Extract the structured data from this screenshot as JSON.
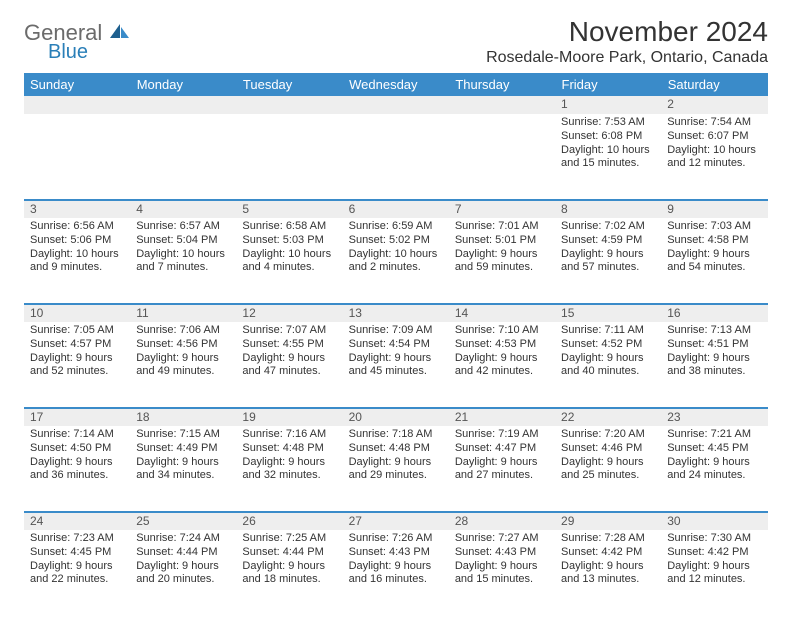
{
  "logo": {
    "line1": "General",
    "line2": "Blue"
  },
  "title": "November 2024",
  "location": "Rosedale-Moore Park, Ontario, Canada",
  "colors": {
    "header_bg": "#3a8bc9",
    "header_text": "#ffffff",
    "daynum_bg": "#eeeeee",
    "separator": "#3a8bc9",
    "body_text": "#333333",
    "logo_gray": "#6b6b6b",
    "logo_blue": "#2a7fb8"
  },
  "day_headers": [
    "Sunday",
    "Monday",
    "Tuesday",
    "Wednesday",
    "Thursday",
    "Friday",
    "Saturday"
  ],
  "weeks": [
    [
      {
        "n": "",
        "t": ""
      },
      {
        "n": "",
        "t": ""
      },
      {
        "n": "",
        "t": ""
      },
      {
        "n": "",
        "t": ""
      },
      {
        "n": "",
        "t": ""
      },
      {
        "n": "1",
        "t": "Sunrise: 7:53 AM\nSunset: 6:08 PM\nDaylight: 10 hours and 15 minutes."
      },
      {
        "n": "2",
        "t": "Sunrise: 7:54 AM\nSunset: 6:07 PM\nDaylight: 10 hours and 12 minutes."
      }
    ],
    [
      {
        "n": "3",
        "t": "Sunrise: 6:56 AM\nSunset: 5:06 PM\nDaylight: 10 hours and 9 minutes."
      },
      {
        "n": "4",
        "t": "Sunrise: 6:57 AM\nSunset: 5:04 PM\nDaylight: 10 hours and 7 minutes."
      },
      {
        "n": "5",
        "t": "Sunrise: 6:58 AM\nSunset: 5:03 PM\nDaylight: 10 hours and 4 minutes."
      },
      {
        "n": "6",
        "t": "Sunrise: 6:59 AM\nSunset: 5:02 PM\nDaylight: 10 hours and 2 minutes."
      },
      {
        "n": "7",
        "t": "Sunrise: 7:01 AM\nSunset: 5:01 PM\nDaylight: 9 hours and 59 minutes."
      },
      {
        "n": "8",
        "t": "Sunrise: 7:02 AM\nSunset: 4:59 PM\nDaylight: 9 hours and 57 minutes."
      },
      {
        "n": "9",
        "t": "Sunrise: 7:03 AM\nSunset: 4:58 PM\nDaylight: 9 hours and 54 minutes."
      }
    ],
    [
      {
        "n": "10",
        "t": "Sunrise: 7:05 AM\nSunset: 4:57 PM\nDaylight: 9 hours and 52 minutes."
      },
      {
        "n": "11",
        "t": "Sunrise: 7:06 AM\nSunset: 4:56 PM\nDaylight: 9 hours and 49 minutes."
      },
      {
        "n": "12",
        "t": "Sunrise: 7:07 AM\nSunset: 4:55 PM\nDaylight: 9 hours and 47 minutes."
      },
      {
        "n": "13",
        "t": "Sunrise: 7:09 AM\nSunset: 4:54 PM\nDaylight: 9 hours and 45 minutes."
      },
      {
        "n": "14",
        "t": "Sunrise: 7:10 AM\nSunset: 4:53 PM\nDaylight: 9 hours and 42 minutes."
      },
      {
        "n": "15",
        "t": "Sunrise: 7:11 AM\nSunset: 4:52 PM\nDaylight: 9 hours and 40 minutes."
      },
      {
        "n": "16",
        "t": "Sunrise: 7:13 AM\nSunset: 4:51 PM\nDaylight: 9 hours and 38 minutes."
      }
    ],
    [
      {
        "n": "17",
        "t": "Sunrise: 7:14 AM\nSunset: 4:50 PM\nDaylight: 9 hours and 36 minutes."
      },
      {
        "n": "18",
        "t": "Sunrise: 7:15 AM\nSunset: 4:49 PM\nDaylight: 9 hours and 34 minutes."
      },
      {
        "n": "19",
        "t": "Sunrise: 7:16 AM\nSunset: 4:48 PM\nDaylight: 9 hours and 32 minutes."
      },
      {
        "n": "20",
        "t": "Sunrise: 7:18 AM\nSunset: 4:48 PM\nDaylight: 9 hours and 29 minutes."
      },
      {
        "n": "21",
        "t": "Sunrise: 7:19 AM\nSunset: 4:47 PM\nDaylight: 9 hours and 27 minutes."
      },
      {
        "n": "22",
        "t": "Sunrise: 7:20 AM\nSunset: 4:46 PM\nDaylight: 9 hours and 25 minutes."
      },
      {
        "n": "23",
        "t": "Sunrise: 7:21 AM\nSunset: 4:45 PM\nDaylight: 9 hours and 24 minutes."
      }
    ],
    [
      {
        "n": "24",
        "t": "Sunrise: 7:23 AM\nSunset: 4:45 PM\nDaylight: 9 hours and 22 minutes."
      },
      {
        "n": "25",
        "t": "Sunrise: 7:24 AM\nSunset: 4:44 PM\nDaylight: 9 hours and 20 minutes."
      },
      {
        "n": "26",
        "t": "Sunrise: 7:25 AM\nSunset: 4:44 PM\nDaylight: 9 hours and 18 minutes."
      },
      {
        "n": "27",
        "t": "Sunrise: 7:26 AM\nSunset: 4:43 PM\nDaylight: 9 hours and 16 minutes."
      },
      {
        "n": "28",
        "t": "Sunrise: 7:27 AM\nSunset: 4:43 PM\nDaylight: 9 hours and 15 minutes."
      },
      {
        "n": "29",
        "t": "Sunrise: 7:28 AM\nSunset: 4:42 PM\nDaylight: 9 hours and 13 minutes."
      },
      {
        "n": "30",
        "t": "Sunrise: 7:30 AM\nSunset: 4:42 PM\nDaylight: 9 hours and 12 minutes."
      }
    ]
  ]
}
